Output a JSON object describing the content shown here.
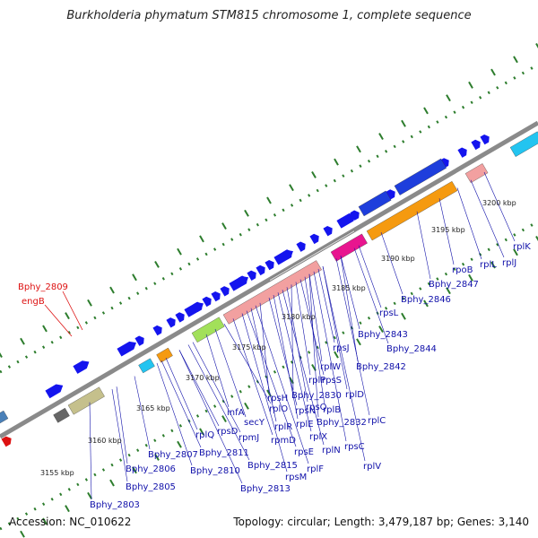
{
  "title": "Burkholderia phymatum STM815 chromosome 1, complete sequence",
  "accession": "Accession: NC_010622",
  "summary": "Topology: circular; Length: 3,479,187 bp; Genes: 3,140",
  "colors": {
    "backbone": "#8a8a8a",
    "ticks": "#2d7d2d",
    "gene_forward": "#1414ee",
    "gene_blue_band": "#1e3edc",
    "rrna_like": "#f2a0a0",
    "orange_band": "#f59a10",
    "magenta": "#e8158f",
    "cyan": "#23c4f0",
    "olive": "#c5c08c",
    "red_label": "#dd1111",
    "blue_label": "#1111aa"
  },
  "scale_labels": [
    "3155 kbp",
    "3160 kbp",
    "3165 kbp",
    "3170 kbp",
    "3175 kbp",
    "3180 kbp",
    "3185 kbp",
    "3190 kbp",
    "3195 kbp",
    "3200 kbp"
  ],
  "red_labels": [
    "Bphy_2809",
    "engB"
  ],
  "gene_labels": [
    "Bphy_2803",
    "Bphy_2805",
    "Bphy_2806",
    "Bphy_2807",
    "Bphy_2810",
    "Bphy_2811",
    "Bphy_2813",
    "Bphy_2815",
    "rplQ",
    "rpsD",
    "rpmJ",
    "infA",
    "secY",
    "rplO",
    "rpmD",
    "rpsM",
    "rpsE",
    "rplR",
    "rplF",
    "rpsH",
    "rpsN",
    "rplE",
    "rplX",
    "rplN",
    "rpsQ",
    "rplP",
    "rpsS",
    "Bphy_2830",
    "rplB",
    "Bphy_2832",
    "rpsC",
    "rplV",
    "rplW",
    "rplD",
    "rplC",
    "Bphy_2842",
    "rpsJ",
    "Bphy_2844",
    "Bphy_2843",
    "rpsL",
    "Bphy_2846",
    "Bphy_2847",
    "rpoB",
    "rplL",
    "rplJ",
    "rplK"
  ]
}
